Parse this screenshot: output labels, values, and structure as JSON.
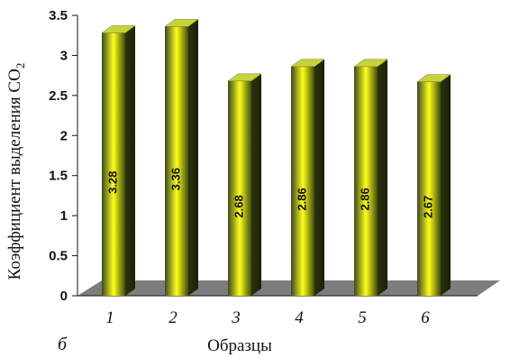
{
  "chart_data": {
    "type": "bar",
    "categories": [
      "1",
      "2",
      "3",
      "4",
      "5",
      "6"
    ],
    "values": [
      3.28,
      3.36,
      2.68,
      2.86,
      2.86,
      2.67
    ],
    "data_labels": [
      "3.28",
      "3.36",
      "2.68",
      "2.86",
      "2.86",
      "2.67"
    ],
    "ylabel": "Коэффициент выделения CO",
    "ylabel_subscript": "2",
    "xlabel": "Образцы",
    "panel_label": "б",
    "ylim": [
      0,
      3.5
    ],
    "yticks": [
      "0",
      "0.5",
      "1",
      "1.5",
      "2",
      "2.5",
      "3",
      "3.5"
    ],
    "grid": false,
    "style": "3d-bar",
    "colors": {
      "bar_center": "#ffff1a",
      "bar_edge": "#3c4a14",
      "bar_top": "#c9d23a",
      "floor": "#7d7d7d"
    }
  }
}
